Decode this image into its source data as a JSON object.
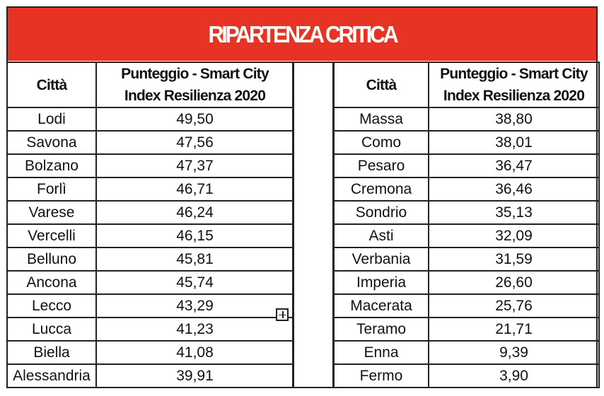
{
  "title": "RIPARTENZA CRITICA",
  "headers": {
    "city": "Città",
    "score_line1": "Punteggio - Smart City",
    "score_line2": "Index Resilienza 2020"
  },
  "accent_color": "#e63323",
  "left_rows": [
    {
      "city": "Lodi",
      "score": "49,50"
    },
    {
      "city": "Savona",
      "score": "47,56"
    },
    {
      "city": "Bolzano",
      "score": "47,37"
    },
    {
      "city": "Forlì",
      "score": "46,71"
    },
    {
      "city": "Varese",
      "score": "46,24"
    },
    {
      "city": "Vercelli",
      "score": "46,15"
    },
    {
      "city": "Belluno",
      "score": "45,81"
    },
    {
      "city": "Ancona",
      "score": "45,74"
    },
    {
      "city": "Lecco",
      "score": "43,29"
    },
    {
      "city": "Lucca",
      "score": "41,23"
    },
    {
      "city": "Biella",
      "score": "41,08"
    },
    {
      "city": "Alessandria",
      "score": "39,91"
    }
  ],
  "right_rows": [
    {
      "city": "Massa",
      "score": "38,80"
    },
    {
      "city": "Como",
      "score": "38,01"
    },
    {
      "city": "Pesaro",
      "score": "36,47"
    },
    {
      "city": "Cremona",
      "score": "36,46"
    },
    {
      "city": "Sondrio",
      "score": "35,13"
    },
    {
      "city": "Asti",
      "score": "32,09"
    },
    {
      "city": "Verbania",
      "score": "31,59"
    },
    {
      "city": "Imperia",
      "score": "26,60"
    },
    {
      "city": "Macerata",
      "score": "25,76"
    },
    {
      "city": "Teramo",
      "score": "21,71"
    },
    {
      "city": "Enna",
      "score": "9,39"
    },
    {
      "city": "Fermo",
      "score": "3,90"
    }
  ]
}
